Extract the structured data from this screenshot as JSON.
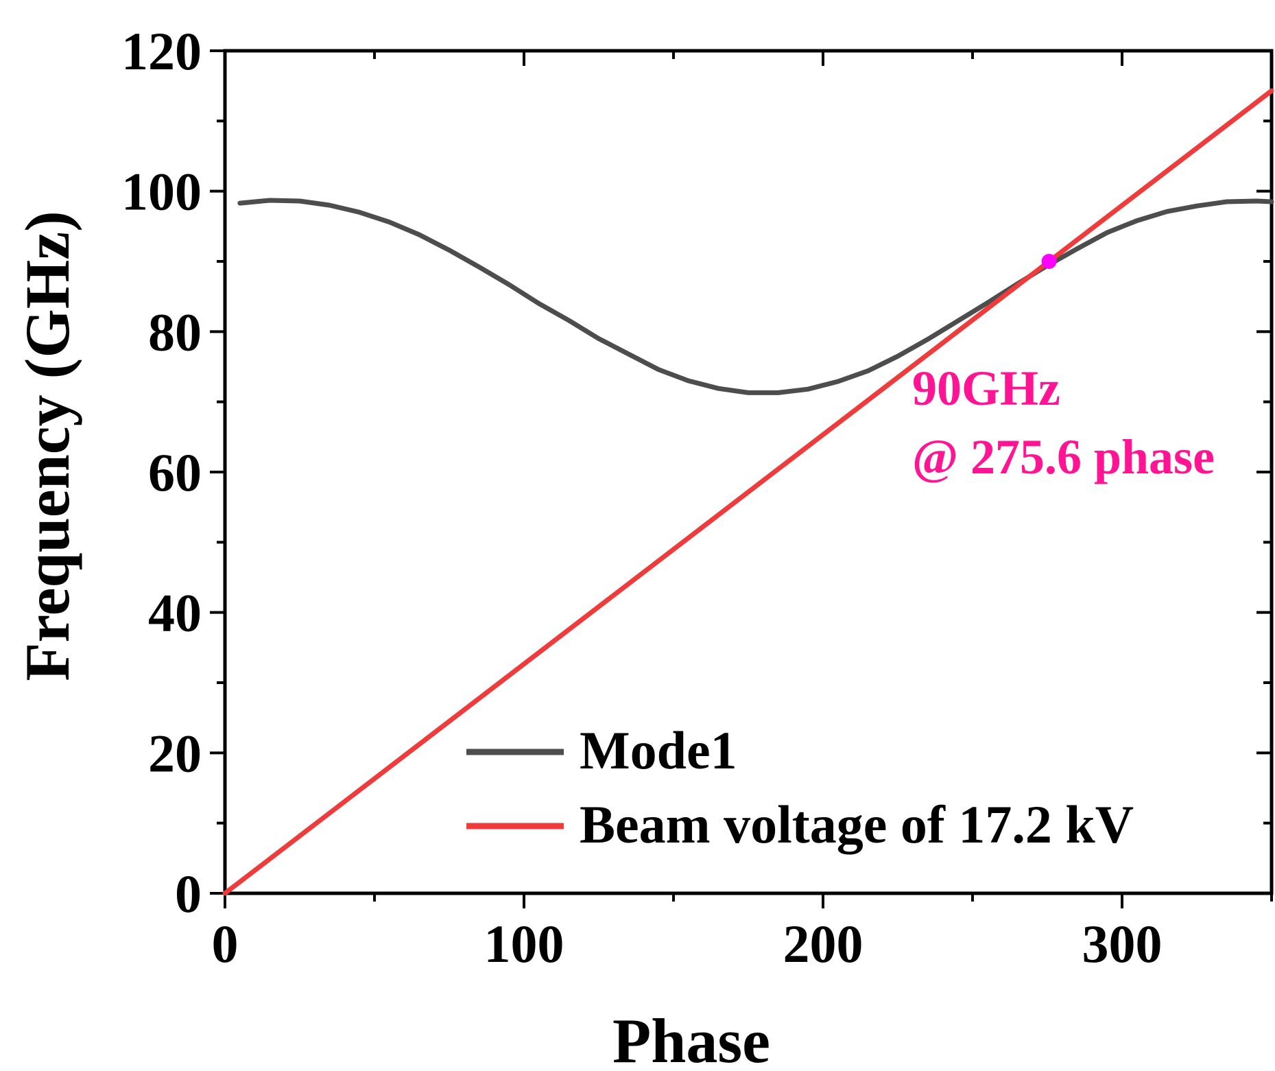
{
  "chart_data": {
    "type": "line",
    "title": "",
    "xlabel": "Phase",
    "ylabel": "Frequency (GHz)",
    "xlim": [
      0,
      350
    ],
    "ylim": [
      0,
      120
    ],
    "xticks": [
      0,
      100,
      200,
      300
    ],
    "yticks": [
      0,
      20,
      40,
      60,
      80,
      100,
      120
    ],
    "xtick_labels": [
      "0",
      "100",
      "200",
      "300"
    ],
    "ytick_labels": [
      "0",
      "20",
      "40",
      "60",
      "80",
      "100",
      "120"
    ],
    "grid": false,
    "legend_position": "bottom-right",
    "series": [
      {
        "name": "Mode1",
        "color": "#4d4d4d",
        "x": [
          5,
          15,
          25,
          35,
          45,
          55,
          65,
          75,
          85,
          95,
          105,
          115,
          125,
          135,
          145,
          155,
          165,
          175,
          185,
          195,
          205,
          215,
          225,
          235,
          245,
          255,
          265,
          275,
          285,
          295,
          305,
          315,
          325,
          335,
          345,
          350
        ],
        "y": [
          98.3,
          98.7,
          98.6,
          98.0,
          97.0,
          95.6,
          93.8,
          91.6,
          89.2,
          86.7,
          84.0,
          81.6,
          79.0,
          76.8,
          74.6,
          73.0,
          71.9,
          71.3,
          71.3,
          71.8,
          72.9,
          74.4,
          76.5,
          78.9,
          81.5,
          84.1,
          86.8,
          89.4,
          91.8,
          94.1,
          95.8,
          97.1,
          97.9,
          98.5,
          98.6,
          98.5
        ]
      },
      {
        "name": "Beam voltage of 17.2 kV",
        "color": "#ee3b3b",
        "x": [
          0,
          350
        ],
        "y": [
          0,
          114.3
        ]
      }
    ],
    "highlight_point": {
      "x": 275.6,
      "y": 90,
      "color": "#ff00ff"
    },
    "annotations": [
      "90GHz",
      "@ 275.6 phase"
    ],
    "annotation_color": "#ff1493"
  }
}
